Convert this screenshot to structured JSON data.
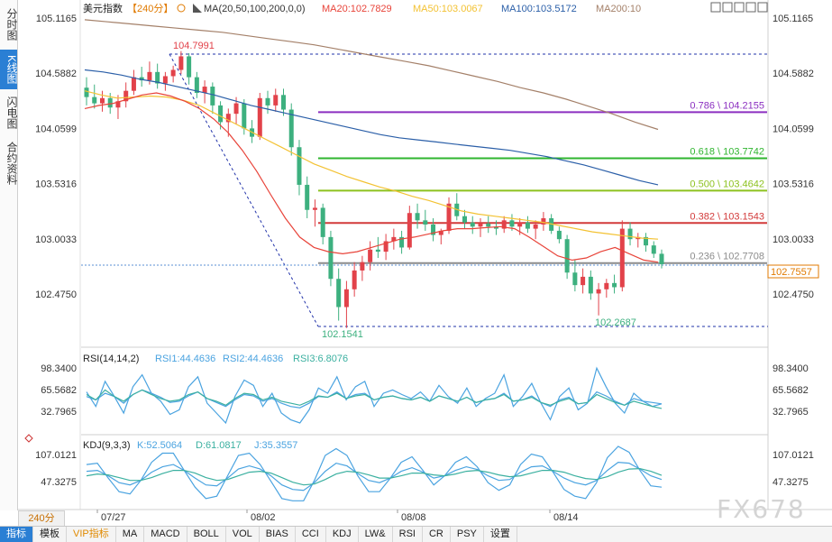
{
  "side_tabs": [
    {
      "label": "分时图",
      "active": false
    },
    {
      "label": "K线图",
      "active": true
    },
    {
      "label": "闪电图",
      "active": false
    },
    {
      "label": "合约资料",
      "active": false
    }
  ],
  "header": {
    "symbol": "美元指数",
    "period": "【240分】",
    "ma_label": "MA(20,50,100,200,0,0)",
    "ma20": "MA20:102.7829",
    "ma50": "MA50:103.0067",
    "ma100": "MA100:103.5172",
    "ma200": "MA200:10"
  },
  "toolbar_icons": [
    "zoom-in-icon",
    "zoom-out-icon",
    "fit-icon",
    "prev-icon",
    "next-icon"
  ],
  "colors": {
    "up": "#e2424a",
    "down": "#3db07f",
    "ma20": "#e8443a",
    "ma50": "#f3c233",
    "ma100": "#2b5fa8",
    "ma200": "#a48069",
    "fib786": "#8b2fc0",
    "fib618": "#2fb52f",
    "fib500": "#8dc21f",
    "fib382": "#d23a3a",
    "fib236": "#8c8c8c",
    "rsi1": "#4aa3e0",
    "rsi2": "#4aa3e0",
    "rsi3": "#3bb0a0",
    "k": "#4aa3e0",
    "d": "#3bb0a0",
    "j": "#4aa3e0"
  },
  "price_axis": [
    "105.1165",
    "104.5882",
    "104.0599",
    "103.5316",
    "103.0033",
    "102.4750"
  ],
  "current_price": "102.7557",
  "annotations": {
    "high": "104.7991",
    "low": "102.1541",
    "low2": "102.2687"
  },
  "fib_levels": [
    {
      "label": "0.786 \\ 104.2155",
      "value": 104.2155,
      "color_key": "fib786"
    },
    {
      "label": "0.618 \\ 103.7742",
      "value": 103.7742,
      "color_key": "fib618"
    },
    {
      "label": "0.500 \\ 103.4642",
      "value": 103.4642,
      "color_key": "fib500"
    },
    {
      "label": "0.382 \\ 103.1543",
      "value": 103.1543,
      "color_key": "fib382"
    },
    {
      "label": "0.236 \\ 102.7708",
      "value": 102.7708,
      "color_key": "fib236"
    }
  ],
  "rsi": {
    "label": "RSI(14,14,2)",
    "rsi1": "RSI1:44.4636",
    "rsi2": "RSI2:44.4636",
    "rsi3": "RSI3:6.8076",
    "axis": [
      "98.3400",
      "65.5682",
      "32.7965"
    ]
  },
  "kdj": {
    "label": "KDJ(9,3,3)",
    "k": "K:52.5064",
    "d": "D:61.0817",
    "j": "J:35.3557",
    "axis": [
      "107.0121",
      "47.3275"
    ]
  },
  "date_labels": [
    "07/27",
    "08/02",
    "08/08",
    "08/14"
  ],
  "period_box": "240分",
  "indicator_tabs": [
    "指标",
    "模板",
    "VIP指标",
    "MA",
    "MACD",
    "BOLL",
    "VOL",
    "BIAS",
    "CCI",
    "KDJ",
    "LW&",
    "RSI",
    "CR",
    "PSY",
    "设置"
  ],
  "watermark": "FX678",
  "chart_data": {
    "type": "candlestick",
    "title": "美元指数 【240分】",
    "price_range": [
      101.93,
      105.33
    ],
    "candles": [
      [
        104.45,
        104.55,
        104.28,
        104.36
      ],
      [
        104.36,
        104.48,
        104.25,
        104.3
      ],
      [
        104.3,
        104.42,
        104.22,
        104.35
      ],
      [
        104.35,
        104.4,
        104.2,
        104.26
      ],
      [
        104.26,
        104.38,
        104.15,
        104.32
      ],
      [
        104.32,
        104.5,
        104.26,
        104.42
      ],
      [
        104.42,
        104.62,
        104.38,
        104.55
      ],
      [
        104.55,
        104.65,
        104.46,
        104.52
      ],
      [
        104.52,
        104.7,
        104.48,
        104.6
      ],
      [
        104.6,
        104.68,
        104.44,
        104.49
      ],
      [
        104.49,
        104.6,
        104.42,
        104.56
      ],
      [
        104.56,
        104.66,
        104.5,
        104.62
      ],
      [
        104.62,
        104.8,
        104.58,
        104.75
      ],
      [
        104.75,
        104.78,
        104.48,
        104.55
      ],
      [
        104.55,
        104.6,
        104.35,
        104.4
      ],
      [
        104.4,
        104.52,
        104.3,
        104.46
      ],
      [
        104.46,
        104.5,
        104.2,
        104.28
      ],
      [
        104.28,
        104.32,
        104.05,
        104.12
      ],
      [
        104.12,
        104.25,
        103.98,
        104.2
      ],
      [
        104.2,
        104.36,
        104.1,
        104.3
      ],
      [
        104.3,
        104.34,
        104.0,
        104.06
      ],
      [
        104.06,
        104.14,
        103.92,
        103.98
      ],
      [
        103.98,
        104.4,
        103.95,
        104.35
      ],
      [
        104.35,
        104.42,
        104.2,
        104.28
      ],
      [
        104.28,
        104.44,
        104.22,
        104.38
      ],
      [
        104.38,
        104.44,
        104.18,
        104.24
      ],
      [
        104.24,
        104.3,
        103.8,
        103.88
      ],
      [
        103.88,
        103.95,
        103.42,
        103.52
      ],
      [
        103.52,
        103.6,
        103.2,
        103.28
      ],
      [
        103.28,
        103.38,
        103.12,
        103.3
      ],
      [
        103.3,
        103.34,
        102.95,
        103.02
      ],
      [
        103.02,
        103.08,
        102.55,
        102.62
      ],
      [
        102.62,
        102.72,
        102.22,
        102.35
      ],
      [
        102.35,
        102.6,
        102.15,
        102.52
      ],
      [
        102.52,
        102.78,
        102.45,
        102.7
      ],
      [
        102.7,
        102.84,
        102.6,
        102.78
      ],
      [
        102.78,
        102.98,
        102.7,
        102.9
      ],
      [
        102.9,
        103.02,
        102.82,
        102.88
      ],
      [
        102.88,
        103.05,
        102.8,
        102.98
      ],
      [
        102.98,
        103.1,
        102.9,
        103.02
      ],
      [
        103.02,
        103.08,
        102.86,
        102.92
      ],
      [
        102.92,
        103.32,
        102.9,
        103.25
      ],
      [
        103.25,
        103.34,
        103.1,
        103.18
      ],
      [
        103.18,
        103.28,
        103.08,
        103.14
      ],
      [
        103.14,
        103.2,
        102.98,
        103.04
      ],
      [
        103.04,
        103.1,
        102.95,
        103.08
      ],
      [
        103.08,
        103.4,
        103.05,
        103.34
      ],
      [
        103.34,
        103.44,
        103.18,
        103.22
      ],
      [
        103.22,
        103.28,
        103.1,
        103.16
      ],
      [
        103.16,
        103.22,
        103.05,
        103.12
      ],
      [
        103.12,
        103.2,
        103.02,
        103.15
      ],
      [
        103.15,
        103.22,
        103.06,
        103.12
      ],
      [
        103.12,
        103.18,
        103.04,
        103.1
      ],
      [
        103.1,
        103.22,
        103.06,
        103.18
      ],
      [
        103.18,
        103.24,
        103.08,
        103.12
      ],
      [
        103.12,
        103.2,
        103.04,
        103.16
      ],
      [
        103.16,
        103.22,
        103.06,
        103.1
      ],
      [
        103.1,
        103.18,
        103.0,
        103.14
      ],
      [
        103.14,
        103.26,
        103.08,
        103.2
      ],
      [
        103.2,
        103.24,
        103.05,
        103.08
      ],
      [
        103.08,
        103.12,
        102.96,
        103.0
      ],
      [
        103.0,
        103.04,
        102.62,
        102.68
      ],
      [
        102.68,
        102.8,
        102.5,
        102.56
      ],
      [
        102.56,
        102.72,
        102.48,
        102.64
      ],
      [
        102.64,
        102.7,
        102.42,
        102.48
      ],
      [
        102.48,
        102.58,
        102.27,
        102.52
      ],
      [
        102.52,
        102.62,
        102.44,
        102.58
      ],
      [
        102.58,
        102.66,
        102.48,
        102.54
      ],
      [
        102.54,
        103.18,
        102.5,
        103.1
      ],
      [
        103.1,
        103.16,
        102.94,
        103.0
      ],
      [
        103.0,
        103.06,
        102.92,
        103.02
      ],
      [
        103.02,
        103.06,
        102.88,
        102.94
      ],
      [
        102.94,
        102.98,
        102.82,
        102.86
      ],
      [
        102.86,
        102.9,
        102.72,
        102.76
      ]
    ],
    "ma20": [
      104.25,
      104.28,
      104.3,
      104.34,
      104.38,
      104.4,
      104.37,
      104.32,
      104.25,
      104.15,
      104.02,
      103.85,
      103.65,
      103.42,
      103.2,
      103.02,
      102.92,
      102.88,
      102.86,
      102.88,
      102.92,
      102.96,
      103.0,
      103.02,
      103.05,
      103.08,
      103.1,
      103.1,
      103.11,
      103.12,
      103.1,
      103.02,
      102.93,
      102.84,
      102.8,
      102.82,
      102.88,
      102.92,
      102.86,
      102.8,
      102.78
    ],
    "ma50": [
      104.42,
      104.38,
      104.35,
      104.36,
      104.37,
      104.36,
      104.33,
      104.28,
      104.2,
      104.12,
      104.04,
      103.96,
      103.88,
      103.8,
      103.72,
      103.66,
      103.6,
      103.55,
      103.5,
      103.46,
      103.41,
      103.37,
      103.32,
      103.27,
      103.24,
      103.22,
      103.2,
      103.18,
      103.16,
      103.13,
      103.1,
      103.07,
      103.05,
      103.03,
      103.01,
      103.0
    ],
    "ma100": [
      104.62,
      104.6,
      104.57,
      104.53,
      104.5,
      104.46,
      104.42,
      104.38,
      104.33,
      104.28,
      104.24,
      104.2,
      104.16,
      104.12,
      104.08,
      104.04,
      104.0,
      103.97,
      103.95,
      103.93,
      103.91,
      103.89,
      103.87,
      103.85,
      103.82,
      103.79,
      103.75,
      103.71,
      103.66,
      103.61,
      103.56,
      103.52
    ],
    "ma200": [
      105.1,
      105.08,
      105.06,
      105.04,
      105.02,
      105.0,
      104.98,
      104.95,
      104.92,
      104.89,
      104.86,
      104.82,
      104.78,
      104.74,
      104.7,
      104.66,
      104.61,
      104.56,
      104.51,
      104.45,
      104.4,
      104.34,
      104.27,
      104.2,
      104.12,
      104.05
    ],
    "rsi_series": {
      "rsi1": [
        62,
        40,
        78,
        55,
        30,
        70,
        88,
        60,
        48,
        28,
        35,
        70,
        85,
        45,
        30,
        15,
        55,
        80,
        72,
        40,
        60,
        30,
        20,
        15,
        35,
        68,
        60,
        85,
        50,
        70,
        78,
        40,
        60,
        65,
        58,
        52,
        62,
        48,
        72,
        55,
        45,
        68,
        40,
        52,
        60,
        88,
        40,
        55,
        75,
        45,
        20,
        55,
        68,
        35,
        45,
        98,
        70,
        45,
        30,
        60,
        48,
        40,
        44
      ],
      "rsi2": [
        55,
        50,
        60,
        55,
        45,
        58,
        65,
        60,
        54,
        46,
        48,
        56,
        62,
        52,
        46,
        40,
        50,
        58,
        56,
        48,
        52,
        45,
        40,
        38,
        45,
        55,
        54,
        62,
        52,
        58,
        60,
        50,
        54,
        56,
        52,
        50,
        54,
        48,
        56,
        52,
        48,
        54,
        46,
        50,
        52,
        60,
        48,
        50,
        56,
        46,
        40,
        50,
        54,
        44,
        46,
        62,
        56,
        48,
        42,
        52,
        48,
        46,
        44
      ],
      "rsi3": [
        28,
        20,
        35,
        25,
        18,
        28,
        35,
        28,
        22,
        18,
        20,
        28,
        32,
        22,
        18,
        12,
        22,
        30,
        28,
        20,
        24,
        18,
        15,
        12,
        18,
        26,
        24,
        30,
        22,
        26,
        28,
        20,
        24,
        26,
        22,
        20,
        24,
        18,
        26,
        22,
        18,
        24,
        16,
        20,
        22,
        28,
        18,
        20,
        24,
        16,
        12,
        18,
        22,
        14,
        16,
        28,
        22,
        16,
        12,
        18,
        14,
        10,
        7
      ]
    },
    "kdj_series": {
      "k": [
        70,
        72,
        60,
        45,
        40,
        50,
        68,
        80,
        85,
        72,
        55,
        40,
        38,
        55,
        75,
        82,
        75,
        60,
        40,
        30,
        28,
        45,
        70,
        88,
        82,
        65,
        50,
        45,
        55,
        70,
        78,
        68,
        55,
        60,
        72,
        80,
        74,
        60,
        50,
        52,
        68,
        80,
        82,
        70,
        55,
        45,
        40,
        50,
        72,
        90,
        88,
        75,
        60,
        52
      ],
      "d": [
        60,
        64,
        62,
        56,
        50,
        50,
        56,
        65,
        72,
        72,
        66,
        56,
        50,
        52,
        60,
        68,
        70,
        66,
        56,
        46,
        40,
        42,
        52,
        64,
        70,
        68,
        62,
        55,
        55,
        60,
        66,
        66,
        62,
        60,
        64,
        70,
        72,
        68,
        62,
        58,
        60,
        66,
        72,
        72,
        68,
        60,
        54,
        52,
        58,
        68,
        75,
        76,
        70,
        61
      ],
      "j": [
        85,
        88,
        55,
        25,
        20,
        50,
        90,
        110,
        110,
        72,
        35,
        10,
        15,
        60,
        105,
        110,
        85,
        48,
        10,
        5,
        5,
        50,
        105,
        120,
        105,
        60,
        25,
        25,
        55,
        90,
        102,
        72,
        40,
        60,
        90,
        102,
        80,
        45,
        28,
        40,
        85,
        108,
        102,
        68,
        30,
        15,
        10,
        45,
        100,
        125,
        112,
        72,
        38,
        35
      ]
    }
  }
}
